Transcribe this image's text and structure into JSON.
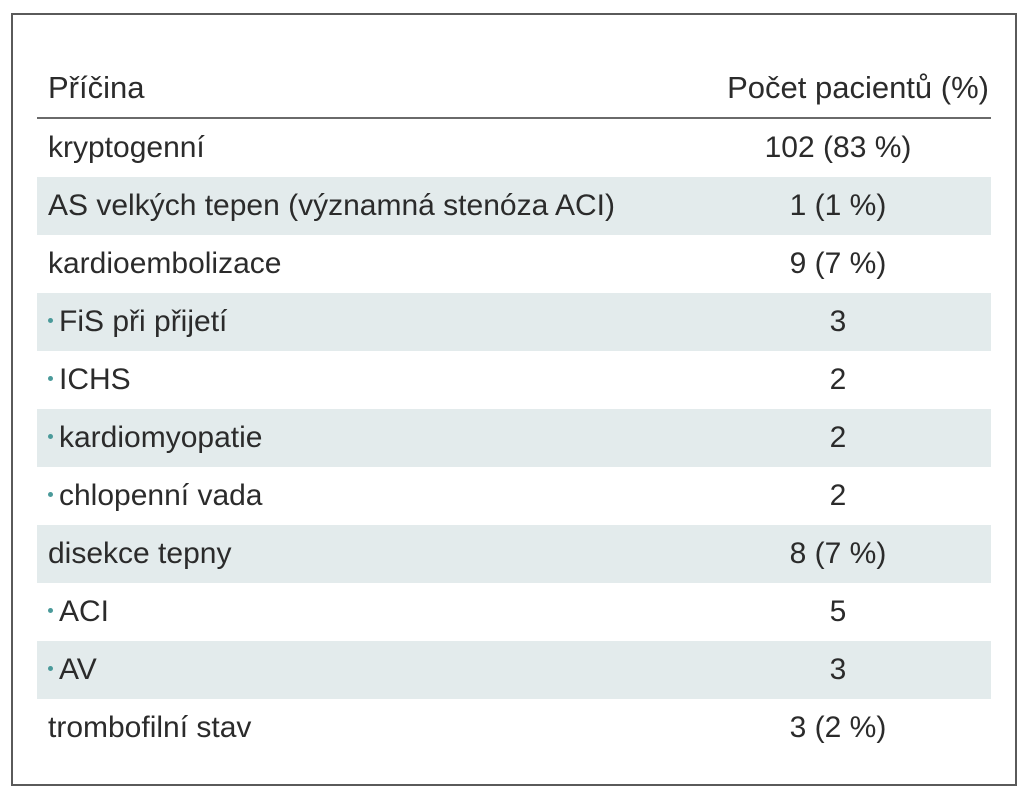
{
  "table": {
    "header": {
      "cause": "Příčina",
      "count": "Počet pacientů (%)"
    },
    "rows": [
      {
        "cause": "kryptogenní",
        "count": "102 (83 %)",
        "sub": false
      },
      {
        "cause": "AS velkých tepen (významná stenóza ACI)",
        "count": "1 (1 %)",
        "sub": false
      },
      {
        "cause": "kardioembolizace",
        "count": "9 (7 %)",
        "sub": false
      },
      {
        "cause": "FiS při přijetí",
        "count": "3",
        "sub": true
      },
      {
        "cause": "ICHS",
        "count": "2",
        "sub": true
      },
      {
        "cause": "kardiomyopatie",
        "count": "2",
        "sub": true
      },
      {
        "cause": "chlopenní vada",
        "count": "2",
        "sub": true
      },
      {
        "cause": "disekce tepny",
        "count": "8 (7 %)",
        "sub": false
      },
      {
        "cause": "ACI",
        "count": "5",
        "sub": true
      },
      {
        "cause": "AV",
        "count": "3",
        "sub": true
      },
      {
        "cause": "trombofilní stav",
        "count": "3 (2 %)",
        "sub": false
      }
    ],
    "colors": {
      "shade": "#e3ebec",
      "bullet": "#4a9a9a",
      "border": "#5a5a5a"
    }
  }
}
